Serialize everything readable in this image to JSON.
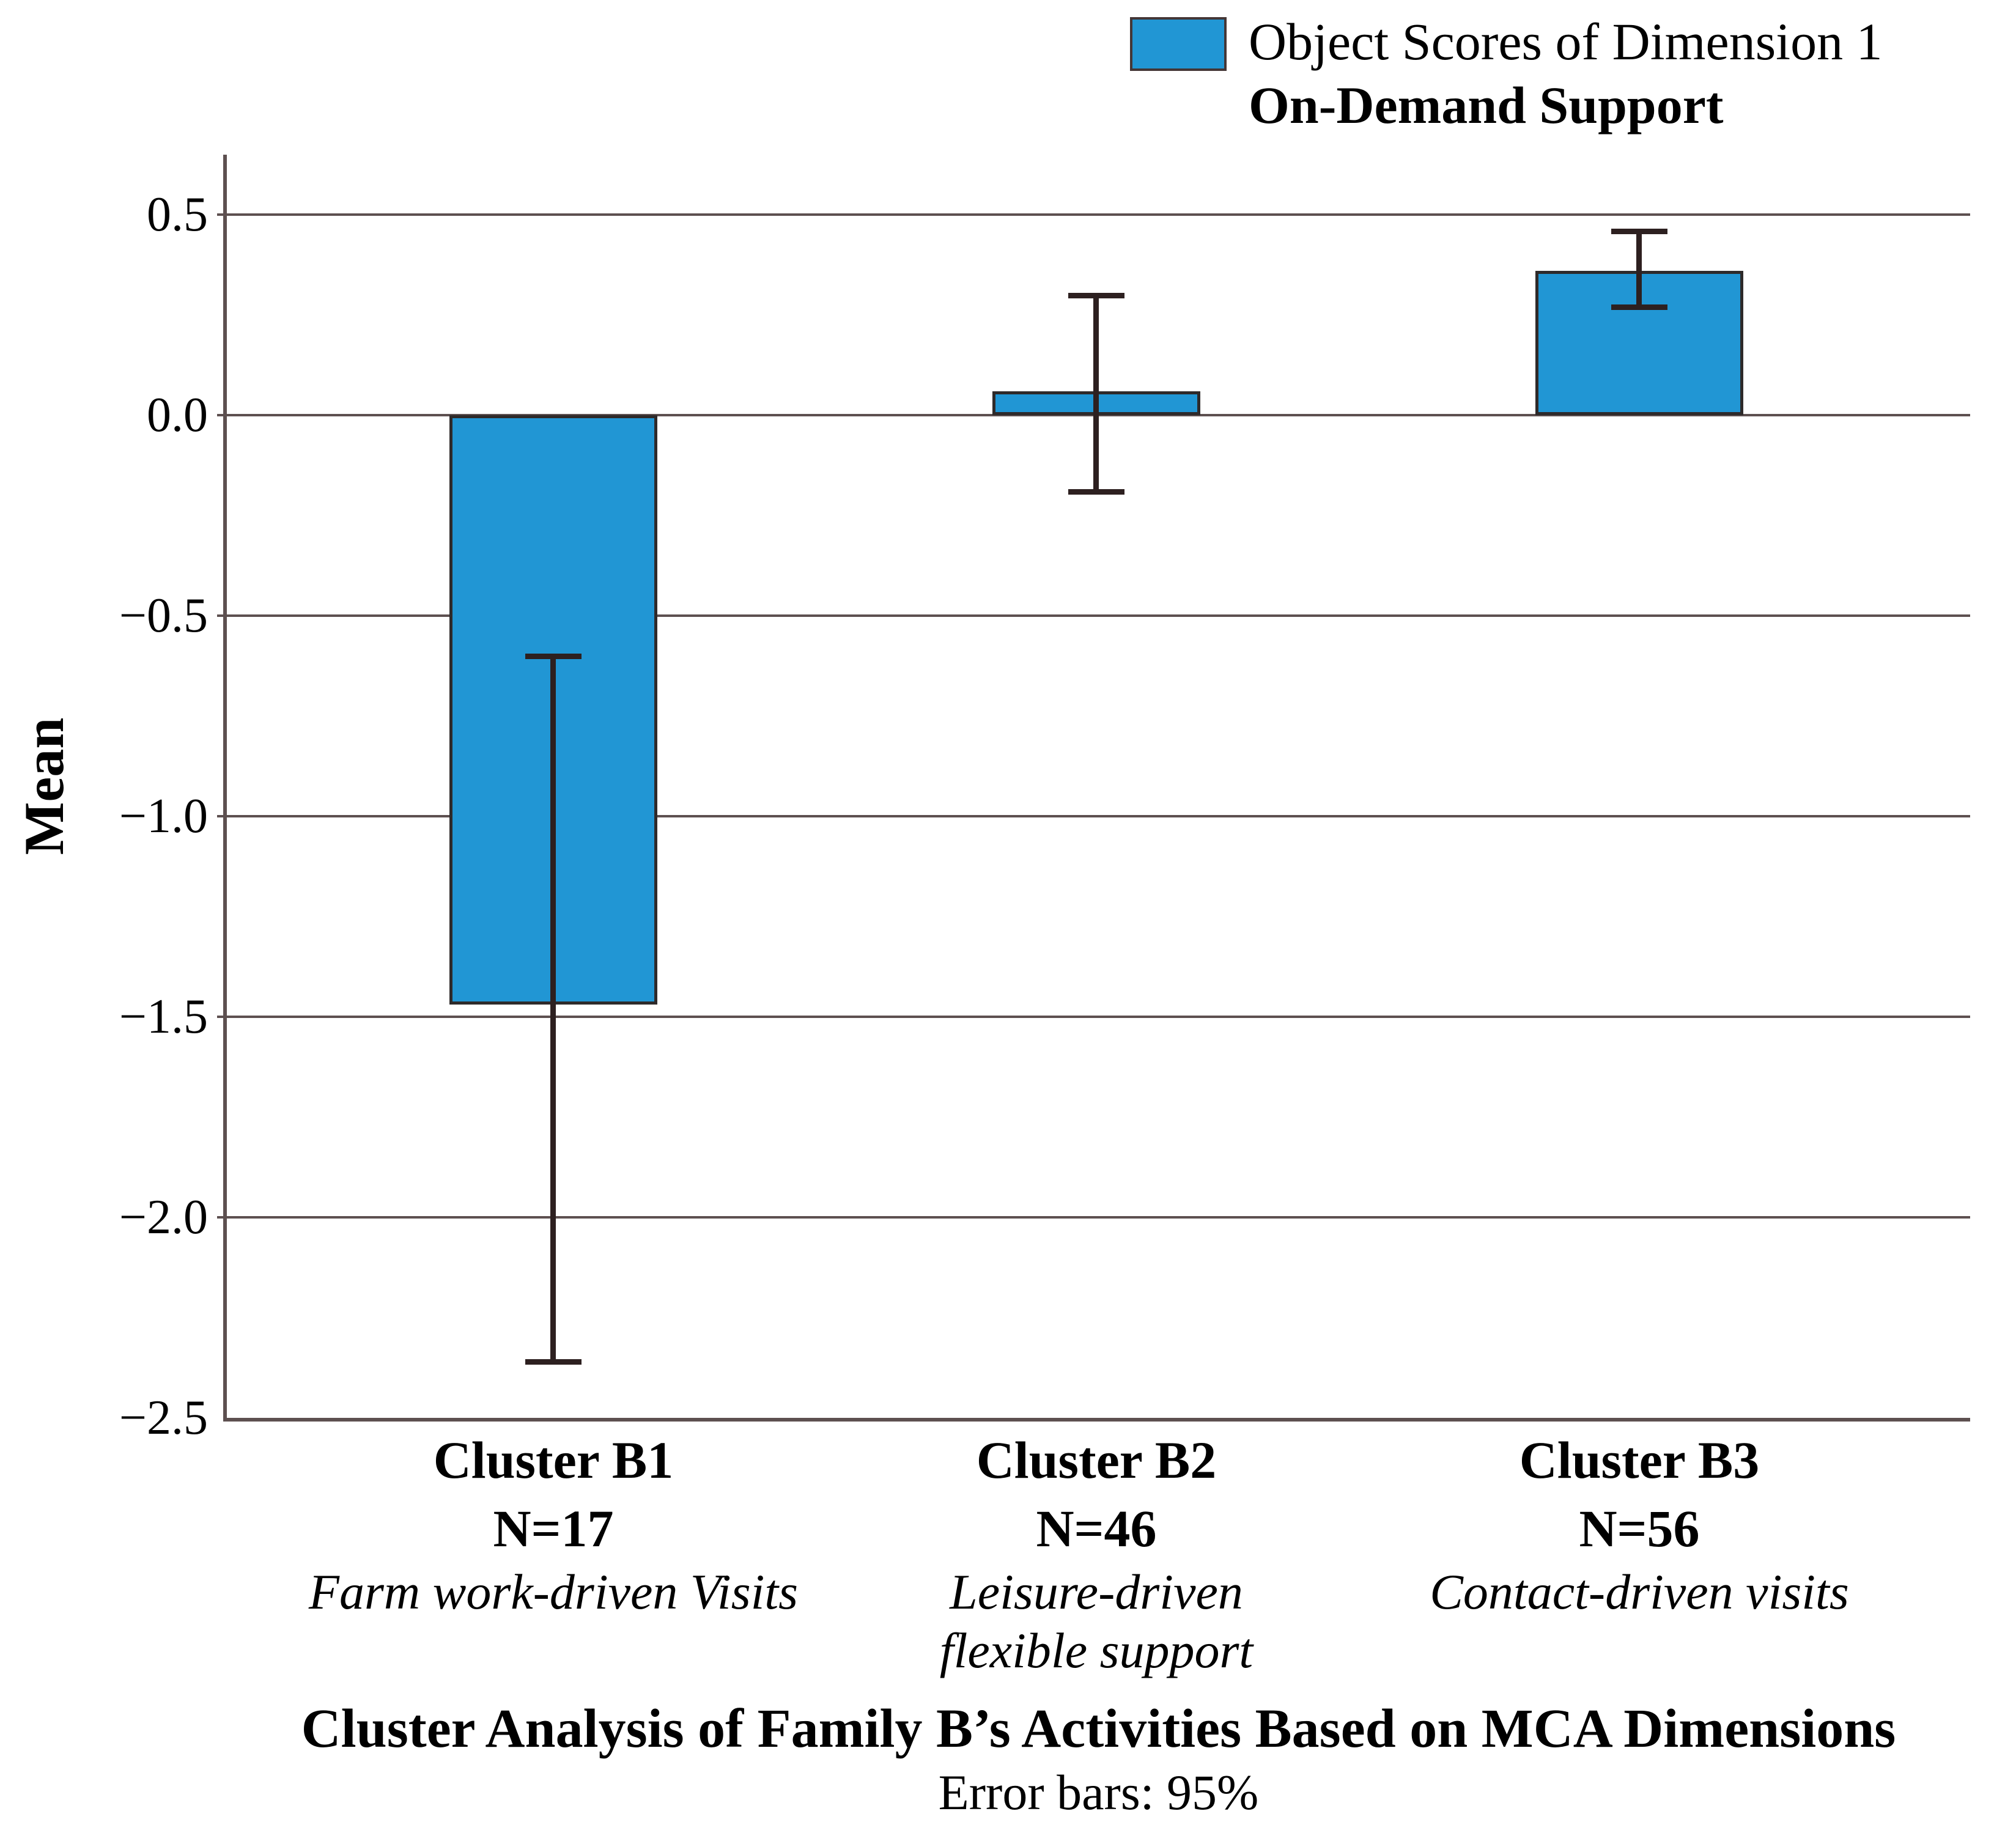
{
  "chart_data": {
    "type": "bar",
    "title": "Cluster Analysis of Family B’s Activities Based on MCA Dimensions",
    "subtitle": "Error bars: 95%",
    "ylabel": "Mean",
    "legend": {
      "series_label": "Object Scores of Dimension 1",
      "group_label": "On-Demand Support"
    },
    "ylim": [
      -2.5,
      0.65
    ],
    "yticks": [
      0.5,
      0.0,
      -0.5,
      -1.0,
      -1.5,
      -2.0,
      -2.5
    ],
    "ytick_labels": [
      "0.5",
      "0.0",
      "−0.5",
      "−1.0",
      "−1.5",
      "−2.0",
      "−2.5"
    ],
    "grid": true,
    "legend_position": "top-right",
    "bar_color": "#2196d4",
    "error_bar_color": "#2d2020",
    "categories": [
      {
        "name": "Cluster B1",
        "n_label": "N=17",
        "desc_lines": [
          "Farm work-driven Visits"
        ],
        "value": -1.47,
        "ci_low": -2.36,
        "ci_high": -0.6
      },
      {
        "name": "Cluster B2",
        "n_label": "N=46",
        "desc_lines": [
          "Leisure-driven",
          "flexible support"
        ],
        "value": 0.06,
        "ci_low": -0.19,
        "ci_high": 0.3
      },
      {
        "name": "Cluster B3",
        "n_label": "N=56",
        "desc_lines": [
          "Contact-driven visits"
        ],
        "value": 0.36,
        "ci_low": 0.27,
        "ci_high": 0.46
      }
    ]
  }
}
